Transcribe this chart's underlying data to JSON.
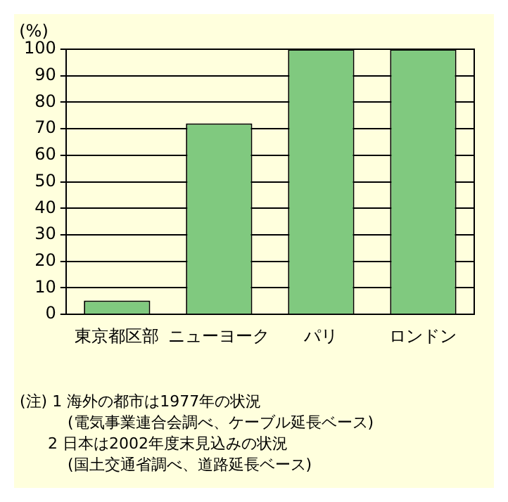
{
  "chart_data": {
    "type": "bar",
    "ylabel": "(%)",
    "categories": [
      "東京都区部",
      "ニューヨーク",
      "パリ",
      "ロンドン"
    ],
    "values": [
      5.2,
      72,
      100,
      100
    ],
    "color": "#80c97f",
    "ylim": [
      0,
      100
    ],
    "yticks": [
      0,
      10,
      20,
      30,
      40,
      50,
      60,
      70,
      80,
      90,
      100
    ],
    "grid": "y",
    "legend": false,
    "annotations": [
      "(注) 1 海外の都市は1977年の状況",
      "(電気事業連合会調べ、ケーブル延長ベース)",
      "2 日本は2002年度末見込みの状況",
      "(国土交通省調べ、道路延長ベース)"
    ]
  }
}
